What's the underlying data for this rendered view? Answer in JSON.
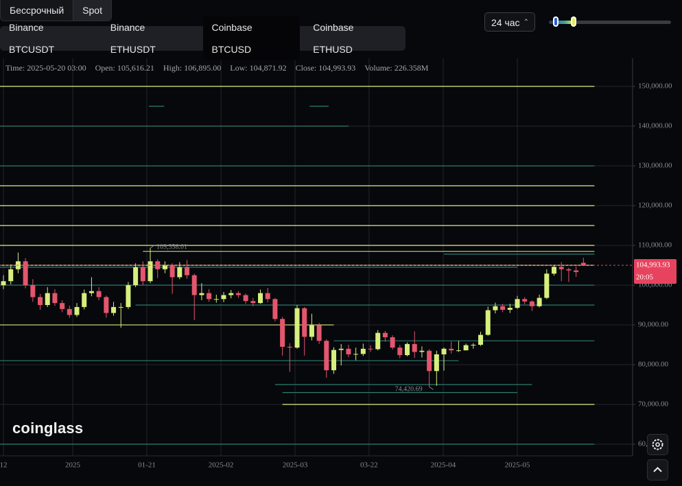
{
  "market_tabs": [
    "Бессрочный",
    "Spot"
  ],
  "exchange_tabs": [
    "Binance BTCUSDT",
    "Binance ETHUSDT",
    "Coinbase BTCUSD",
    "Coinbase ETHUSD"
  ],
  "interval": "24 час",
  "info": [
    "Time: 2025-05-20 03:00",
    "Open: 105,616.21",
    "High: 106,895.00",
    "Low: 104,871.92",
    "Close: 104,993.93",
    "Volume: 226.358M"
  ],
  "logo": "coinglass",
  "chart_data": {
    "type": "candlestick",
    "xlim": [
      -0.47,
      85.7
    ],
    "xticks": [
      {
        "value": 0,
        "label": "12"
      },
      {
        "value": 9.44,
        "label": "2025"
      },
      {
        "value": 19.53,
        "label": "01-21"
      },
      {
        "value": 29.63,
        "label": "2025-02"
      },
      {
        "value": 39.72,
        "label": "2025-03"
      },
      {
        "value": 49.8,
        "label": "03-22"
      },
      {
        "value": 59.9,
        "label": "2025-04"
      },
      {
        "value": 70,
        "label": "2025-05"
      }
    ],
    "ylim": [
      57070,
      157070
    ],
    "yticks": [
      {
        "value": 60000,
        "label": "60,000.00"
      },
      {
        "value": 70000,
        "label": "70,000.00"
      },
      {
        "value": 80000,
        "label": "80,000.00"
      },
      {
        "value": 90000,
        "label": "90,000.00"
      },
      {
        "value": 100000,
        "label": "100,000.00"
      },
      {
        "value": 110000,
        "label": "110,000.00"
      },
      {
        "value": 120000,
        "label": "120,000.00"
      },
      {
        "value": 130000,
        "label": "130,000.00"
      },
      {
        "value": 140000,
        "label": "140,000.00"
      },
      {
        "value": 150000,
        "label": "150,000.00"
      }
    ],
    "grid": true,
    "up_color": "#d7ef7c",
    "down_color": "#e4566d",
    "open": [
      100000,
      101000,
      104000,
      106000,
      100000,
      97000,
      95000,
      98000,
      95500,
      94000,
      92500,
      94500,
      98000,
      98500,
      97000,
      93000,
      94500,
      94500,
      100000,
      104500,
      101000,
      106000,
      104000,
      105000,
      102000,
      104500,
      102500,
      97500,
      98000,
      96500,
      96500,
      97500,
      98000,
      97500,
      96000,
      95500,
      98000,
      96500,
      91500,
      84500,
      84300,
      94200,
      87000,
      89900,
      86000,
      78600,
      83700,
      84000,
      82600,
      82700,
      84000,
      83900,
      88000,
      86900,
      84300,
      82400,
      85200,
      83200,
      83500,
      78400,
      82600,
      84000,
      83600,
      83600,
      84900,
      85000,
      87500,
      93700,
      94700,
      93800,
      94300,
      96500,
      95900,
      94700,
      96800,
      102900,
      104600,
      104000,
      103700,
      105616.21
    ],
    "high": [
      102500,
      105200,
      108200,
      106800,
      101500,
      97800,
      99500,
      99000,
      96200,
      94800,
      95500,
      98900,
      102000,
      99500,
      97400,
      95800,
      95500,
      100800,
      105500,
      106000,
      109358.01,
      106500,
      106000,
      105500,
      105800,
      106300,
      102900,
      100500,
      99000,
      97600,
      98300,
      98800,
      98500,
      97900,
      96800,
      98900,
      99300,
      96800,
      92000,
      85400,
      95000,
      94500,
      92800,
      90500,
      86400,
      84400,
      85200,
      85000,
      84300,
      85300,
      84900,
      88700,
      88500,
      87400,
      85000,
      85600,
      88400,
      84600,
      83900,
      83500,
      84300,
      85800,
      86000,
      85300,
      85400,
      88300,
      94600,
      95600,
      95300,
      95300,
      97300,
      97000,
      96200,
      97600,
      104000,
      105000,
      105800,
      104400,
      104700,
      106895
    ],
    "low": [
      99000,
      100200,
      103000,
      99200,
      95800,
      93800,
      94500,
      94800,
      93200,
      91800,
      92000,
      93900,
      97200,
      96200,
      91800,
      92300,
      89300,
      94000,
      99500,
      100000,
      100500,
      101800,
      103000,
      97800,
      101500,
      101600,
      91200,
      96200,
      95800,
      95600,
      95700,
      96700,
      96800,
      95300,
      94700,
      95300,
      95700,
      90900,
      82300,
      78200,
      84000,
      82300,
      86100,
      85200,
      76700,
      77700,
      79800,
      81900,
      81100,
      82200,
      83200,
      83600,
      85800,
      83800,
      81600,
      82100,
      81700,
      81800,
      74420.69,
      74700,
      78500,
      82800,
      83200,
      83700,
      84000,
      84700,
      87300,
      92900,
      93200,
      93000,
      94000,
      95200,
      93500,
      94400,
      96500,
      102400,
      101000,
      100800,
      102100,
      104871.92
    ],
    "close": [
      101000,
      104000,
      106000,
      100000,
      97000,
      95000,
      98000,
      95500,
      94000,
      92500,
      94500,
      98000,
      98500,
      97000,
      93000,
      94500,
      94500,
      100000,
      104500,
      101000,
      106000,
      104000,
      105000,
      102000,
      104500,
      102500,
      97500,
      98000,
      96500,
      96500,
      97500,
      98000,
      97500,
      96000,
      95500,
      98000,
      96500,
      91500,
      84500,
      84300,
      94200,
      87000,
      89900,
      86000,
      78600,
      83700,
      84000,
      82600,
      82700,
      84000,
      83900,
      88000,
      86900,
      84300,
      82400,
      85200,
      83200,
      83500,
      78400,
      82600,
      84000,
      83600,
      83600,
      84900,
      85000,
      87500,
      93700,
      94700,
      93800,
      94300,
      96500,
      95900,
      94700,
      96800,
      102900,
      104600,
      104000,
      103700,
      103300,
      104993.93
    ],
    "annotations": [
      {
        "index": 20,
        "value": 109358.01,
        "label": "109,358.01"
      },
      {
        "index": 58,
        "value": 74420.69,
        "label": "74,420.69"
      }
    ],
    "last_price": {
      "value": 104993.93,
      "label": "104,993.93",
      "color": "#e8435e"
    },
    "countdown": "20:05",
    "levels": [
      {
        "value": 150000,
        "from": -0.47,
        "to": 80.5,
        "color": "#e4ee7c"
      },
      {
        "value": 145000,
        "from": 19.8,
        "to": 21.9,
        "color": "#2e7d70"
      },
      {
        "value": 145000,
        "from": 41.7,
        "to": 44.3,
        "color": "#2e7d70"
      },
      {
        "value": 140000,
        "from": -0.47,
        "to": 47,
        "color": "#2e7d70"
      },
      {
        "value": 130000,
        "from": -0.47,
        "to": 80.5,
        "color": "#2e7d70"
      },
      {
        "value": 125000,
        "from": -0.47,
        "to": 80.5,
        "color": "#e4ee7c"
      },
      {
        "value": 120000,
        "from": -0.47,
        "to": 80.5,
        "color": "#e4ee7c"
      },
      {
        "value": 115000,
        "from": -0.47,
        "to": 80.5,
        "color": "#e4ee7c"
      },
      {
        "value": 110000,
        "from": -0.47,
        "to": 80.5,
        "color": "#e4ee7c"
      },
      {
        "value": 108500,
        "from": 19,
        "to": 80.5,
        "color": "#c7d46e"
      },
      {
        "value": 107800,
        "from": 60,
        "to": 80.5,
        "color": "#2e7d70"
      },
      {
        "value": 105000,
        "from": -0.47,
        "to": 80.5,
        "color": "#e4ee7c"
      },
      {
        "value": 104500,
        "from": -0.47,
        "to": 70,
        "color": "#2e7d70"
      },
      {
        "value": 100000,
        "from": -0.47,
        "to": 80.5,
        "color": "#2e7d70"
      },
      {
        "value": 95000,
        "from": 18,
        "to": 80.5,
        "color": "#2e7d70"
      },
      {
        "value": 90000,
        "from": -0.47,
        "to": 45,
        "color": "#c7d46e"
      },
      {
        "value": 86000,
        "from": 45,
        "to": 80.5,
        "color": "#2e7d70"
      },
      {
        "value": 81000,
        "from": -0.47,
        "to": 62,
        "color": "#2e7d70"
      },
      {
        "value": 75000,
        "from": 37,
        "to": 72,
        "color": "#2e7d70"
      },
      {
        "value": 73000,
        "from": 38,
        "to": 70,
        "color": "#2e7d70"
      },
      {
        "value": 70000,
        "from": 38,
        "to": 80.5,
        "color": "#e4ee7c"
      },
      {
        "value": 60000,
        "from": -0.47,
        "to": 80.5,
        "color": "#2e7d70"
      }
    ]
  }
}
